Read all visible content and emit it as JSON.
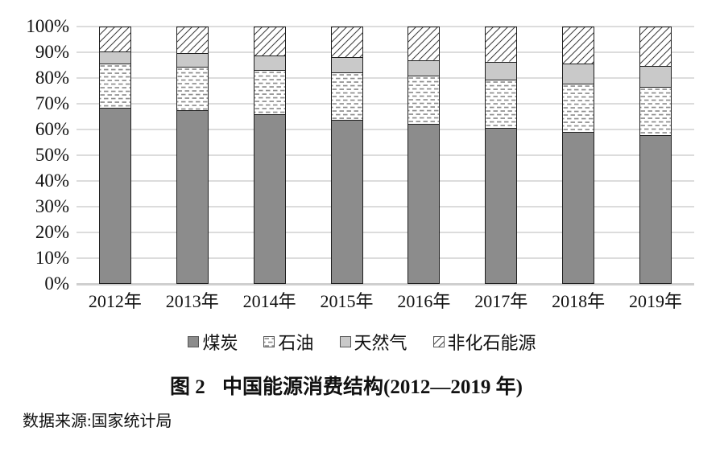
{
  "figure": {
    "title_figure_label": "图 2",
    "title_text": "中国能源消费结构(2012—2019 年)",
    "source": "数据来源:国家统计局"
  },
  "chart_data": {
    "type": "bar",
    "stacked": true,
    "title": "图 2　中国能源消费结构(2012—2019 年)",
    "unit": "percent",
    "categories": [
      "2012年",
      "2013年",
      "2014年",
      "2015年",
      "2016年",
      "2017年",
      "2018年",
      "2019年"
    ],
    "series": [
      {
        "name": "煤炭",
        "pattern": "solid",
        "color": "#8c8c8c",
        "values": [
          68.5,
          67.4,
          65.8,
          63.8,
          62.2,
          60.6,
          59.0,
          57.7
        ]
      },
      {
        "name": "石油",
        "pattern": "dashes",
        "color": "#ffffff",
        "values": [
          17.0,
          17.1,
          17.3,
          18.4,
          18.7,
          18.9,
          18.9,
          19.0
        ]
      },
      {
        "name": "天然气",
        "pattern": "solid",
        "color": "#c9c9c9",
        "values": [
          4.8,
          5.3,
          5.6,
          5.8,
          6.1,
          6.9,
          7.6,
          8.0
        ]
      },
      {
        "name": "非化石能源",
        "pattern": "hatch",
        "color": "#ffffff",
        "values": [
          9.7,
          10.2,
          11.3,
          12.0,
          13.0,
          13.6,
          14.5,
          15.3
        ]
      }
    ],
    "y_ticks": [
      "0%",
      "10%",
      "20%",
      "30%",
      "40%",
      "50%",
      "60%",
      "70%",
      "80%",
      "90%",
      "100%"
    ],
    "ylim": [
      0,
      100
    ],
    "grid": true,
    "legend_position": "bottom",
    "source_note": "数据来源:国家统计局"
  },
  "colors": {
    "coal_fill": "#8c8c8c",
    "gas_fill": "#c9c9c9",
    "segment_border": "#1f1f1f",
    "gridline": "#dcdcdc",
    "text": "#111111"
  }
}
